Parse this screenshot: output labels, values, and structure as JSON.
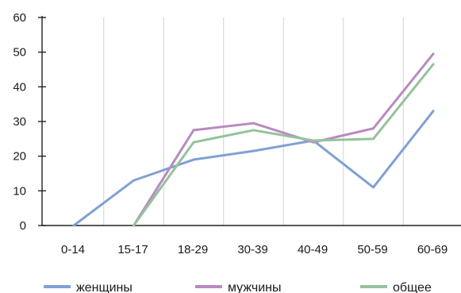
{
  "chart_data": {
    "type": "line",
    "title": "",
    "xlabel": "",
    "ylabel": "",
    "categories": [
      "0-14",
      "15-17",
      "18-29",
      "30-39",
      "40-49",
      "50-59",
      "60-69"
    ],
    "ylim": [
      0,
      60
    ],
    "yticks": [
      "0",
      "10",
      "20",
      "30",
      "40",
      "50",
      "60"
    ],
    "grid": "vertical",
    "legend_position": "bottom",
    "series": [
      {
        "name": "женщины",
        "color": "#7fa1d4",
        "values": [
          0,
          13,
          19,
          21.5,
          24.5,
          11,
          33
        ]
      },
      {
        "name": "мужчины",
        "color": "#b98ac0",
        "values": [
          null,
          0,
          27.5,
          29.5,
          24,
          28,
          49.5
        ]
      },
      {
        "name": "общее",
        "color": "#95c29c",
        "values": [
          null,
          0,
          24,
          27.5,
          24.5,
          25,
          46.5
        ]
      }
    ]
  }
}
